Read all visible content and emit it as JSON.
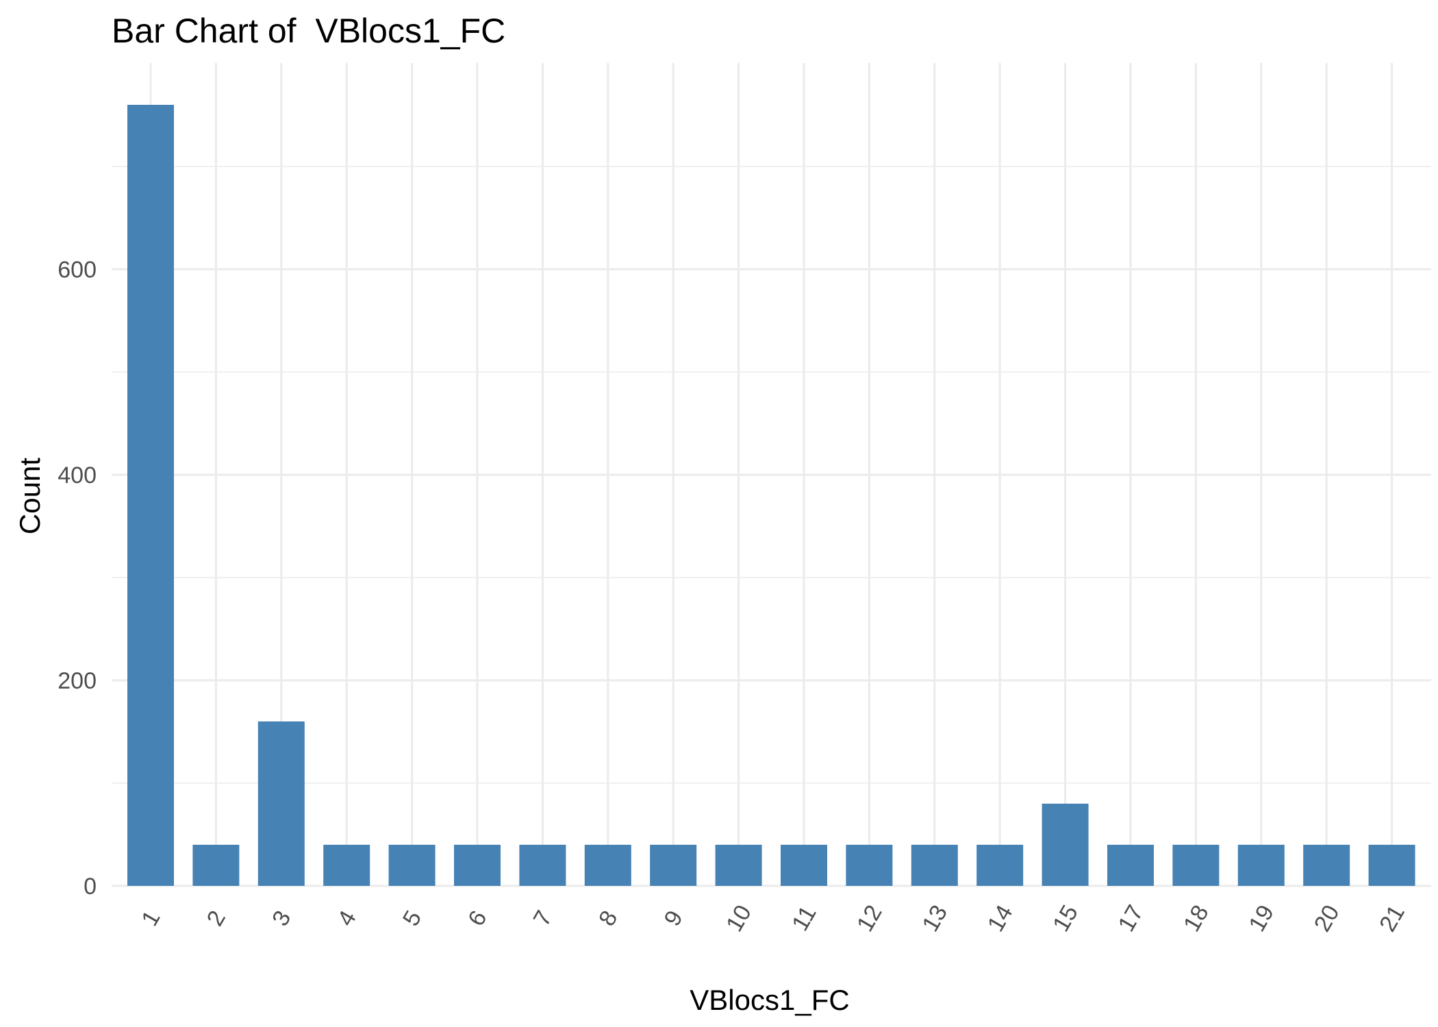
{
  "chart_data": {
    "type": "bar",
    "title": "Bar Chart of  VBlocs1_FC",
    "xlabel": "VBlocs1_FC",
    "ylabel": "Count",
    "categories": [
      "1",
      "2",
      "3",
      "4",
      "5",
      "6",
      "7",
      "8",
      "9",
      "10",
      "11",
      "12",
      "13",
      "14",
      "15",
      "17",
      "18",
      "19",
      "20",
      "21"
    ],
    "values": [
      760,
      40,
      160,
      40,
      40,
      40,
      40,
      40,
      40,
      40,
      40,
      40,
      40,
      40,
      80,
      40,
      40,
      40,
      40,
      40
    ],
    "ylim": [
      0,
      800
    ],
    "yticks": [
      0,
      200,
      400,
      600
    ],
    "ytick_labels": [
      "0",
      "200",
      "400",
      "600"
    ],
    "grid": true,
    "bar_color": "#4682B4",
    "grid_color": "#EBEBEB",
    "background": "#FFFFFF"
  }
}
